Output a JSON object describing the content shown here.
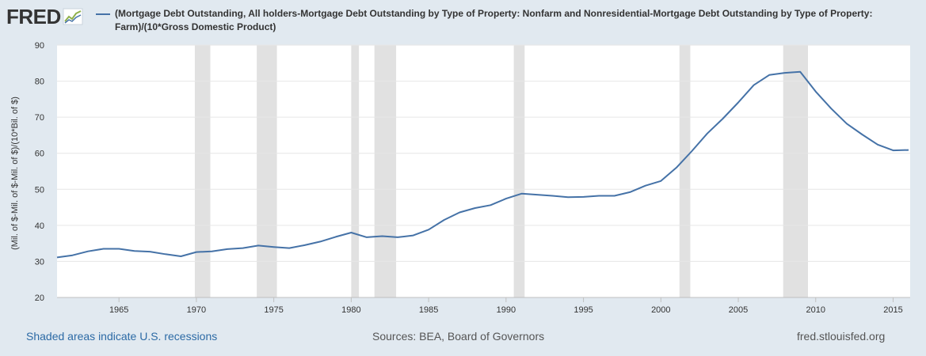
{
  "header": {
    "logo_text": "FRED",
    "legend_label": "(Mortgage Debt Outstanding, All holders-Mortgage Debt Outstanding by Type of Property: Nonfarm and Nonresidential-Mortgage Debt Outstanding by Type of Property: Farm)/(10*Gross Domestic Product)"
  },
  "footer": {
    "recession_note": "Shaded areas indicate U.S. recessions",
    "sources": "Sources: BEA, Board of Governors",
    "site": "fred.stlouisfed.org"
  },
  "colors": {
    "series": "#4572a7",
    "recession": "#e1e1e1",
    "background": "#e1e9f0",
    "plot": "#ffffff",
    "grid": "#e6e6e6"
  },
  "chart_data": {
    "type": "line",
    "title": "",
    "ylabel": "(Mil. of $-Mil. of $-Mil. of $)/(10*Bil. of $)",
    "xlabel": "",
    "xlim": [
      1961,
      2016.1
    ],
    "ylim": [
      20,
      90
    ],
    "yticks": [
      20,
      30,
      40,
      50,
      60,
      70,
      80,
      90
    ],
    "xticks": [
      1965,
      1970,
      1975,
      1980,
      1985,
      1990,
      1995,
      2000,
      2005,
      2010,
      2015
    ],
    "grid": true,
    "legend": "top-left",
    "recessions": [
      [
        1969.9,
        1970.9
      ],
      [
        1973.9,
        1975.2
      ],
      [
        1980.0,
        1980.5
      ],
      [
        1981.5,
        1982.9
      ],
      [
        1990.5,
        1991.2
      ],
      [
        2001.2,
        2001.9
      ],
      [
        2007.9,
        2009.5
      ]
    ],
    "series": [
      {
        "x": [
          1961,
          1962,
          1963,
          1964,
          1965,
          1966,
          1967,
          1968,
          1969,
          1970,
          1971,
          1972,
          1973,
          1974,
          1975,
          1976,
          1977,
          1978,
          1979,
          1980,
          1981,
          1982,
          1983,
          1984,
          1985,
          1986,
          1987,
          1988,
          1989,
          1990,
          1991,
          1992,
          1993,
          1994,
          1995,
          1996,
          1997,
          1998,
          1999,
          2000,
          2001,
          2002,
          2003,
          2004,
          2005,
          2006,
          2007,
          2008,
          2009,
          2010,
          2011,
          2012,
          2013,
          2014,
          2015,
          2016
        ],
        "values": [
          31.1,
          31.7,
          32.8,
          33.5,
          33.5,
          32.9,
          32.7,
          32.0,
          31.4,
          32.6,
          32.8,
          33.4,
          33.7,
          34.4,
          34.0,
          33.7,
          34.5,
          35.5,
          36.8,
          38.0,
          36.7,
          37.0,
          36.7,
          37.2,
          38.8,
          41.5,
          43.6,
          44.8,
          45.6,
          47.4,
          48.8,
          48.5,
          48.2,
          47.8,
          47.9,
          48.2,
          48.2,
          49.2,
          51.0,
          52.3,
          56.0,
          60.6,
          65.5,
          69.6,
          74.1,
          78.9,
          81.7,
          82.3,
          82.6,
          77.1,
          72.4,
          68.2,
          65.2,
          62.4,
          60.8,
          60.9
        ]
      }
    ]
  }
}
